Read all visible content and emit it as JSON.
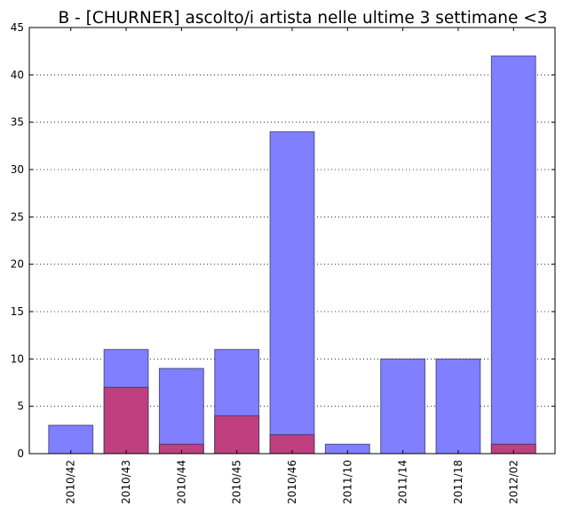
{
  "chart_data": {
    "type": "bar",
    "title": "B - [CHURNER] ascolto/i artista nelle ultime 3 settimane <3",
    "xlabel": "",
    "ylabel": "",
    "categories": [
      "2010/42",
      "2010/43",
      "2010/44",
      "2010/45",
      "2010/46",
      "2011/10",
      "2011/14",
      "2011/18",
      "2012/02"
    ],
    "series": [
      {
        "values": [
          3,
          11,
          9,
          11,
          34,
          1,
          10,
          10,
          42
        ],
        "color": "#7f7fff"
      },
      {
        "values": [
          0,
          7,
          1,
          4,
          2,
          0,
          0,
          0,
          1
        ],
        "color": "#bf3f7f"
      }
    ],
    "ylim": [
      0,
      45
    ],
    "yticks": [
      0,
      5,
      10,
      15,
      20,
      25,
      30,
      35,
      40,
      45
    ],
    "grid": "y-dotted",
    "legend": "none"
  }
}
